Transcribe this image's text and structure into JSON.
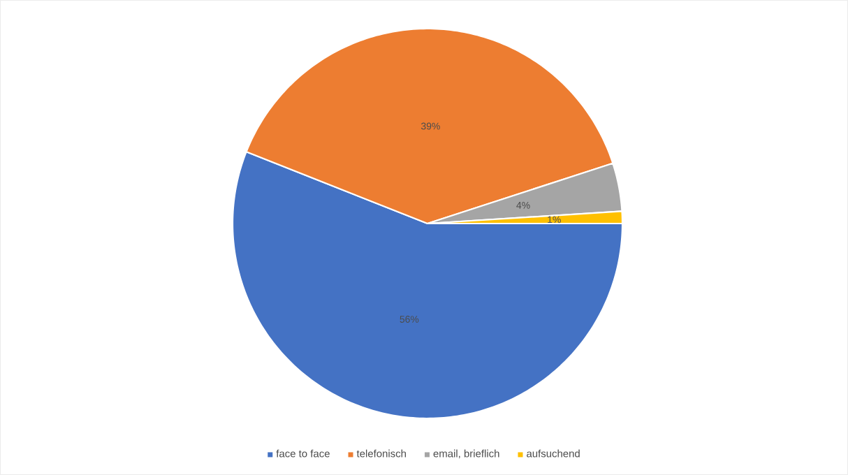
{
  "chart_data": {
    "type": "pie",
    "categories": [
      "face to face",
      "telefonisch",
      "email, brieflich",
      "aufsuchend"
    ],
    "values": [
      56,
      39,
      4,
      1
    ],
    "colors": [
      "#4472c4",
      "#ed7d31",
      "#a5a5a5",
      "#ffc000"
    ],
    "value_labels": [
      "56%",
      "39%",
      "4%",
      "1%"
    ],
    "legend": "bottom"
  }
}
